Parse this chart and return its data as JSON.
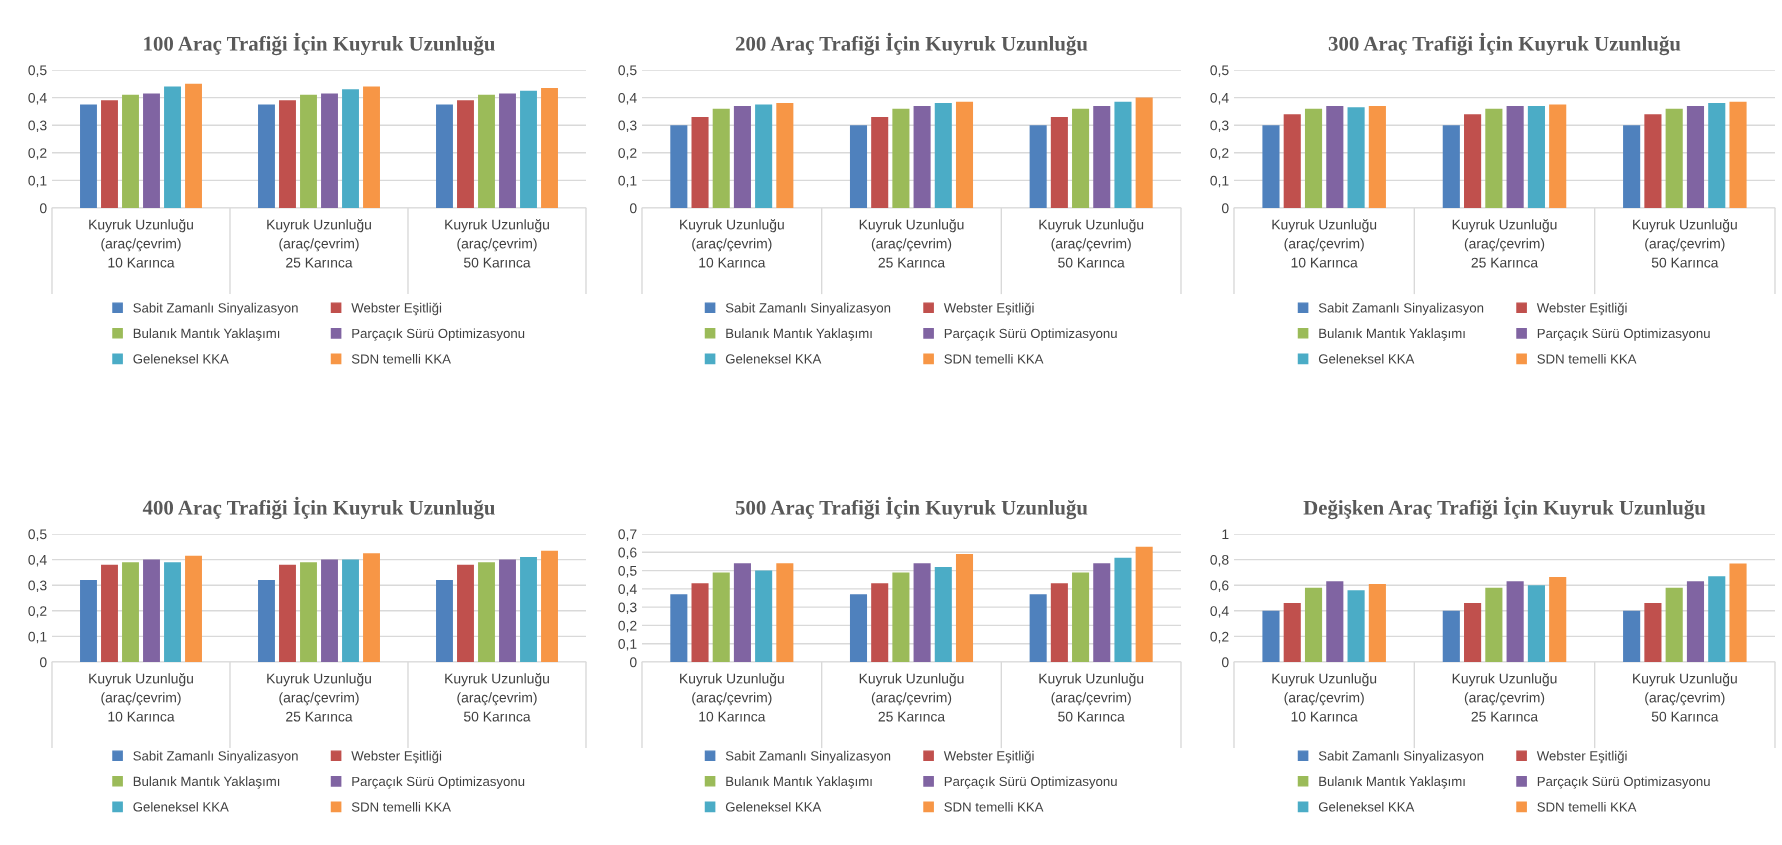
{
  "chart_data": [
    {
      "type": "bar",
      "title": "100 Araç Trafiği İçin Kuyruk Uzunluğu",
      "categories": [
        "Kuyruk Uzunluğu\n(araç/çevrim)\n\n10 Karınca",
        "Kuyruk Uzunluğu\n(araç/çevrim)\n\n25 Karınca",
        "Kuyruk Uzunluğu\n(araç/çevrim)\n\n50 Karınca"
      ],
      "ylim": [
        0,
        0.5
      ],
      "yticks": [
        {
          "value": 0,
          "label": "0"
        },
        {
          "value": 0.1,
          "label": "0,1"
        },
        {
          "value": 0.2,
          "label": "0,2"
        },
        {
          "value": 0.3,
          "label": "0,3"
        },
        {
          "value": 0.4,
          "label": "0,4"
        },
        {
          "value": 0.5,
          "label": "0,5"
        }
      ],
      "grid": "y",
      "legend": "bottom",
      "series": [
        {
          "name": "Sabit Zamanlı Sinyalizasyon",
          "color": "#4f81bd",
          "values": [
            0.375,
            0.375,
            0.375
          ]
        },
        {
          "name": "Webster Eşitliği",
          "color": "#c0504d",
          "values": [
            0.39,
            0.39,
            0.39
          ]
        },
        {
          "name": "Bulanık Mantık Yaklaşımı",
          "color": "#9bbb59",
          "values": [
            0.41,
            0.41,
            0.41
          ]
        },
        {
          "name": "Parçaçık Sürü Optimizasyonu",
          "color": "#8064a2",
          "values": [
            0.415,
            0.415,
            0.415
          ]
        },
        {
          "name": "Geleneksel KKA",
          "color": "#4bacc6",
          "values": [
            0.44,
            0.43,
            0.425
          ]
        },
        {
          "name": "SDN temelli KKA",
          "color": "#f79646",
          "values": [
            0.45,
            0.44,
            0.435
          ]
        }
      ]
    },
    {
      "type": "bar",
      "title": "200 Araç Trafiği İçin Kuyruk Uzunluğu",
      "categories": [
        "Kuyruk Uzunluğu\n(araç/çevrim)\n\n10 Karınca",
        "Kuyruk Uzunluğu\n(araç/çevrim)\n\n25 Karınca",
        "Kuyruk Uzunluğu\n(araç/çevrim)\n\n50 Karınca"
      ],
      "ylim": [
        0,
        0.5
      ],
      "yticks": [
        {
          "value": 0,
          "label": "0"
        },
        {
          "value": 0.1,
          "label": "0,1"
        },
        {
          "value": 0.2,
          "label": "0,2"
        },
        {
          "value": 0.3,
          "label": "0,3"
        },
        {
          "value": 0.4,
          "label": "0,4"
        },
        {
          "value": 0.5,
          "label": "0,5"
        }
      ],
      "grid": "y",
      "legend": "bottom",
      "series": [
        {
          "name": "Sabit Zamanlı Sinyalizasyon",
          "color": "#4f81bd",
          "values": [
            0.3,
            0.3,
            0.3
          ]
        },
        {
          "name": "Webster Eşitliği",
          "color": "#c0504d",
          "values": [
            0.33,
            0.33,
            0.33
          ]
        },
        {
          "name": "Bulanık Mantık Yaklaşımı",
          "color": "#9bbb59",
          "values": [
            0.36,
            0.36,
            0.36
          ]
        },
        {
          "name": "Parçaçık Sürü Optimizasyonu",
          "color": "#8064a2",
          "values": [
            0.37,
            0.37,
            0.37
          ]
        },
        {
          "name": "Geleneksel KKA",
          "color": "#4bacc6",
          "values": [
            0.375,
            0.38,
            0.385
          ]
        },
        {
          "name": "SDN temelli KKA",
          "color": "#f79646",
          "values": [
            0.38,
            0.385,
            0.4
          ]
        }
      ]
    },
    {
      "type": "bar",
      "title": "300 Araç Trafiği İçin Kuyruk Uzunluğu",
      "categories": [
        "Kuyruk Uzunluğu\n(araç/çevrim)\n\n10 Karınca",
        "Kuyruk Uzunluğu\n(araç/çevrim)\n\n25 Karınca",
        "Kuyruk Uzunluğu\n(araç/çevrim)\n\n50 Karınca"
      ],
      "ylim": [
        0,
        0.5
      ],
      "yticks": [
        {
          "value": 0,
          "label": "0"
        },
        {
          "value": 0.1,
          "label": "0,1"
        },
        {
          "value": 0.2,
          "label": "0,2"
        },
        {
          "value": 0.3,
          "label": "0,3"
        },
        {
          "value": 0.4,
          "label": "0,4"
        },
        {
          "value": 0.5,
          "label": "0,5"
        }
      ],
      "grid": "y",
      "legend": "bottom",
      "series": [
        {
          "name": "Sabit Zamanlı Sinyalizasyon",
          "color": "#4f81bd",
          "values": [
            0.3,
            0.3,
            0.3
          ]
        },
        {
          "name": "Webster Eşitliği",
          "color": "#c0504d",
          "values": [
            0.34,
            0.34,
            0.34
          ]
        },
        {
          "name": "Bulanık Mantık Yaklaşımı",
          "color": "#9bbb59",
          "values": [
            0.36,
            0.36,
            0.36
          ]
        },
        {
          "name": "Parçaçık Sürü Optimizasyonu",
          "color": "#8064a2",
          "values": [
            0.37,
            0.37,
            0.37
          ]
        },
        {
          "name": "Geleneksel KKA",
          "color": "#4bacc6",
          "values": [
            0.365,
            0.37,
            0.38
          ]
        },
        {
          "name": "SDN temelli KKA",
          "color": "#f79646",
          "values": [
            0.37,
            0.375,
            0.385
          ]
        }
      ]
    },
    {
      "type": "bar",
      "title": "400 Araç Trafiği İçin Kuyruk Uzunluğu",
      "categories": [
        "Kuyruk Uzunluğu\n(araç/çevrim)\n\n10 Karınca",
        "Kuyruk Uzunluğu\n(araç/çevrim)\n\n25 Karınca",
        "Kuyruk Uzunluğu\n(araç/çevrim)\n\n50 Karınca"
      ],
      "ylim": [
        0,
        0.5
      ],
      "yticks": [
        {
          "value": 0,
          "label": "0"
        },
        {
          "value": 0.1,
          "label": "0,1"
        },
        {
          "value": 0.2,
          "label": "0,2"
        },
        {
          "value": 0.3,
          "label": "0,3"
        },
        {
          "value": 0.4,
          "label": "0,4"
        },
        {
          "value": 0.5,
          "label": "0,5"
        }
      ],
      "grid": "y",
      "legend": "bottom",
      "series": [
        {
          "name": "Sabit Zamanlı Sinyalizasyon",
          "color": "#4f81bd",
          "values": [
            0.32,
            0.32,
            0.32
          ]
        },
        {
          "name": "Webster Eşitliği",
          "color": "#c0504d",
          "values": [
            0.38,
            0.38,
            0.38
          ]
        },
        {
          "name": "Bulanık Mantık Yaklaşımı",
          "color": "#9bbb59",
          "values": [
            0.39,
            0.39,
            0.39
          ]
        },
        {
          "name": "Parçaçık Sürü Optimizasyonu",
          "color": "#8064a2",
          "values": [
            0.4,
            0.4,
            0.4
          ]
        },
        {
          "name": "Geleneksel KKA",
          "color": "#4bacc6",
          "values": [
            0.39,
            0.4,
            0.41
          ]
        },
        {
          "name": "SDN temelli KKA",
          "color": "#f79646",
          "values": [
            0.415,
            0.425,
            0.435
          ]
        }
      ]
    },
    {
      "type": "bar",
      "title": "500 Araç Trafiği İçin Kuyruk Uzunluğu",
      "categories": [
        "Kuyruk Uzunluğu\n(araç/çevrim)\n\n10 Karınca",
        "Kuyruk Uzunluğu\n(araç/çevrim)\n\n25 Karınca",
        "Kuyruk Uzunluğu\n(araç/çevrim)\n\n50 Karınca"
      ],
      "ylim": [
        0,
        0.7
      ],
      "yticks": [
        {
          "value": 0,
          "label": "0"
        },
        {
          "value": 0.1,
          "label": "0,1"
        },
        {
          "value": 0.2,
          "label": "0,2"
        },
        {
          "value": 0.3,
          "label": "0,3"
        },
        {
          "value": 0.4,
          "label": "0,4"
        },
        {
          "value": 0.5,
          "label": "0,5"
        },
        {
          "value": 0.6,
          "label": "0,6"
        },
        {
          "value": 0.7,
          "label": "0,7"
        }
      ],
      "grid": "y",
      "legend": "bottom",
      "series": [
        {
          "name": "Sabit Zamanlı Sinyalizasyon",
          "color": "#4f81bd",
          "values": [
            0.37,
            0.37,
            0.37
          ]
        },
        {
          "name": "Webster Eşitliği",
          "color": "#c0504d",
          "values": [
            0.43,
            0.43,
            0.43
          ]
        },
        {
          "name": "Bulanık Mantık Yaklaşımı",
          "color": "#9bbb59",
          "values": [
            0.49,
            0.49,
            0.49
          ]
        },
        {
          "name": "Parçaçık Sürü Optimizasyonu",
          "color": "#8064a2",
          "values": [
            0.54,
            0.54,
            0.54
          ]
        },
        {
          "name": "Geleneksel KKA",
          "color": "#4bacc6",
          "values": [
            0.5,
            0.52,
            0.57
          ]
        },
        {
          "name": "SDN temelli KKA",
          "color": "#f79646",
          "values": [
            0.54,
            0.59,
            0.63
          ]
        }
      ]
    },
    {
      "type": "bar",
      "title": "Değişken Araç Trafiği İçin Kuyruk Uzunluğu",
      "categories": [
        "Kuyruk Uzunluğu\n(araç/çevrim)\n\n10 Karınca",
        "Kuyruk Uzunluğu\n(araç/çevrim)\n\n25 Karınca",
        "Kuyruk Uzunluğu\n(araç/çevrim)\n\n50 Karınca"
      ],
      "ylim": [
        0,
        1
      ],
      "yticks": [
        {
          "value": 0,
          "label": "0"
        },
        {
          "value": 0.2,
          "label": "0,2"
        },
        {
          "value": 0.4,
          "label": "0,4"
        },
        {
          "value": 0.6,
          "label": "0,6"
        },
        {
          "value": 0.8,
          "label": "0,8"
        },
        {
          "value": 1,
          "label": "1"
        }
      ],
      "grid": "y",
      "legend": "bottom",
      "series": [
        {
          "name": "Sabit Zamanlı Sinyalizasyon",
          "color": "#4f81bd",
          "values": [
            0.4,
            0.4,
            0.4
          ]
        },
        {
          "name": "Webster Eşitliği",
          "color": "#c0504d",
          "values": [
            0.46,
            0.46,
            0.46
          ]
        },
        {
          "name": "Bulanık Mantık Yaklaşımı",
          "color": "#9bbb59",
          "values": [
            0.58,
            0.58,
            0.58
          ]
        },
        {
          "name": "Parçaçık Sürü Optimizasyonu",
          "color": "#8064a2",
          "values": [
            0.63,
            0.63,
            0.63
          ]
        },
        {
          "name": "Geleneksel KKA",
          "color": "#4bacc6",
          "values": [
            0.56,
            0.6,
            0.67
          ]
        },
        {
          "name": "SDN temelli KKA",
          "color": "#f79646",
          "values": [
            0.61,
            0.665,
            0.77
          ]
        }
      ]
    }
  ]
}
